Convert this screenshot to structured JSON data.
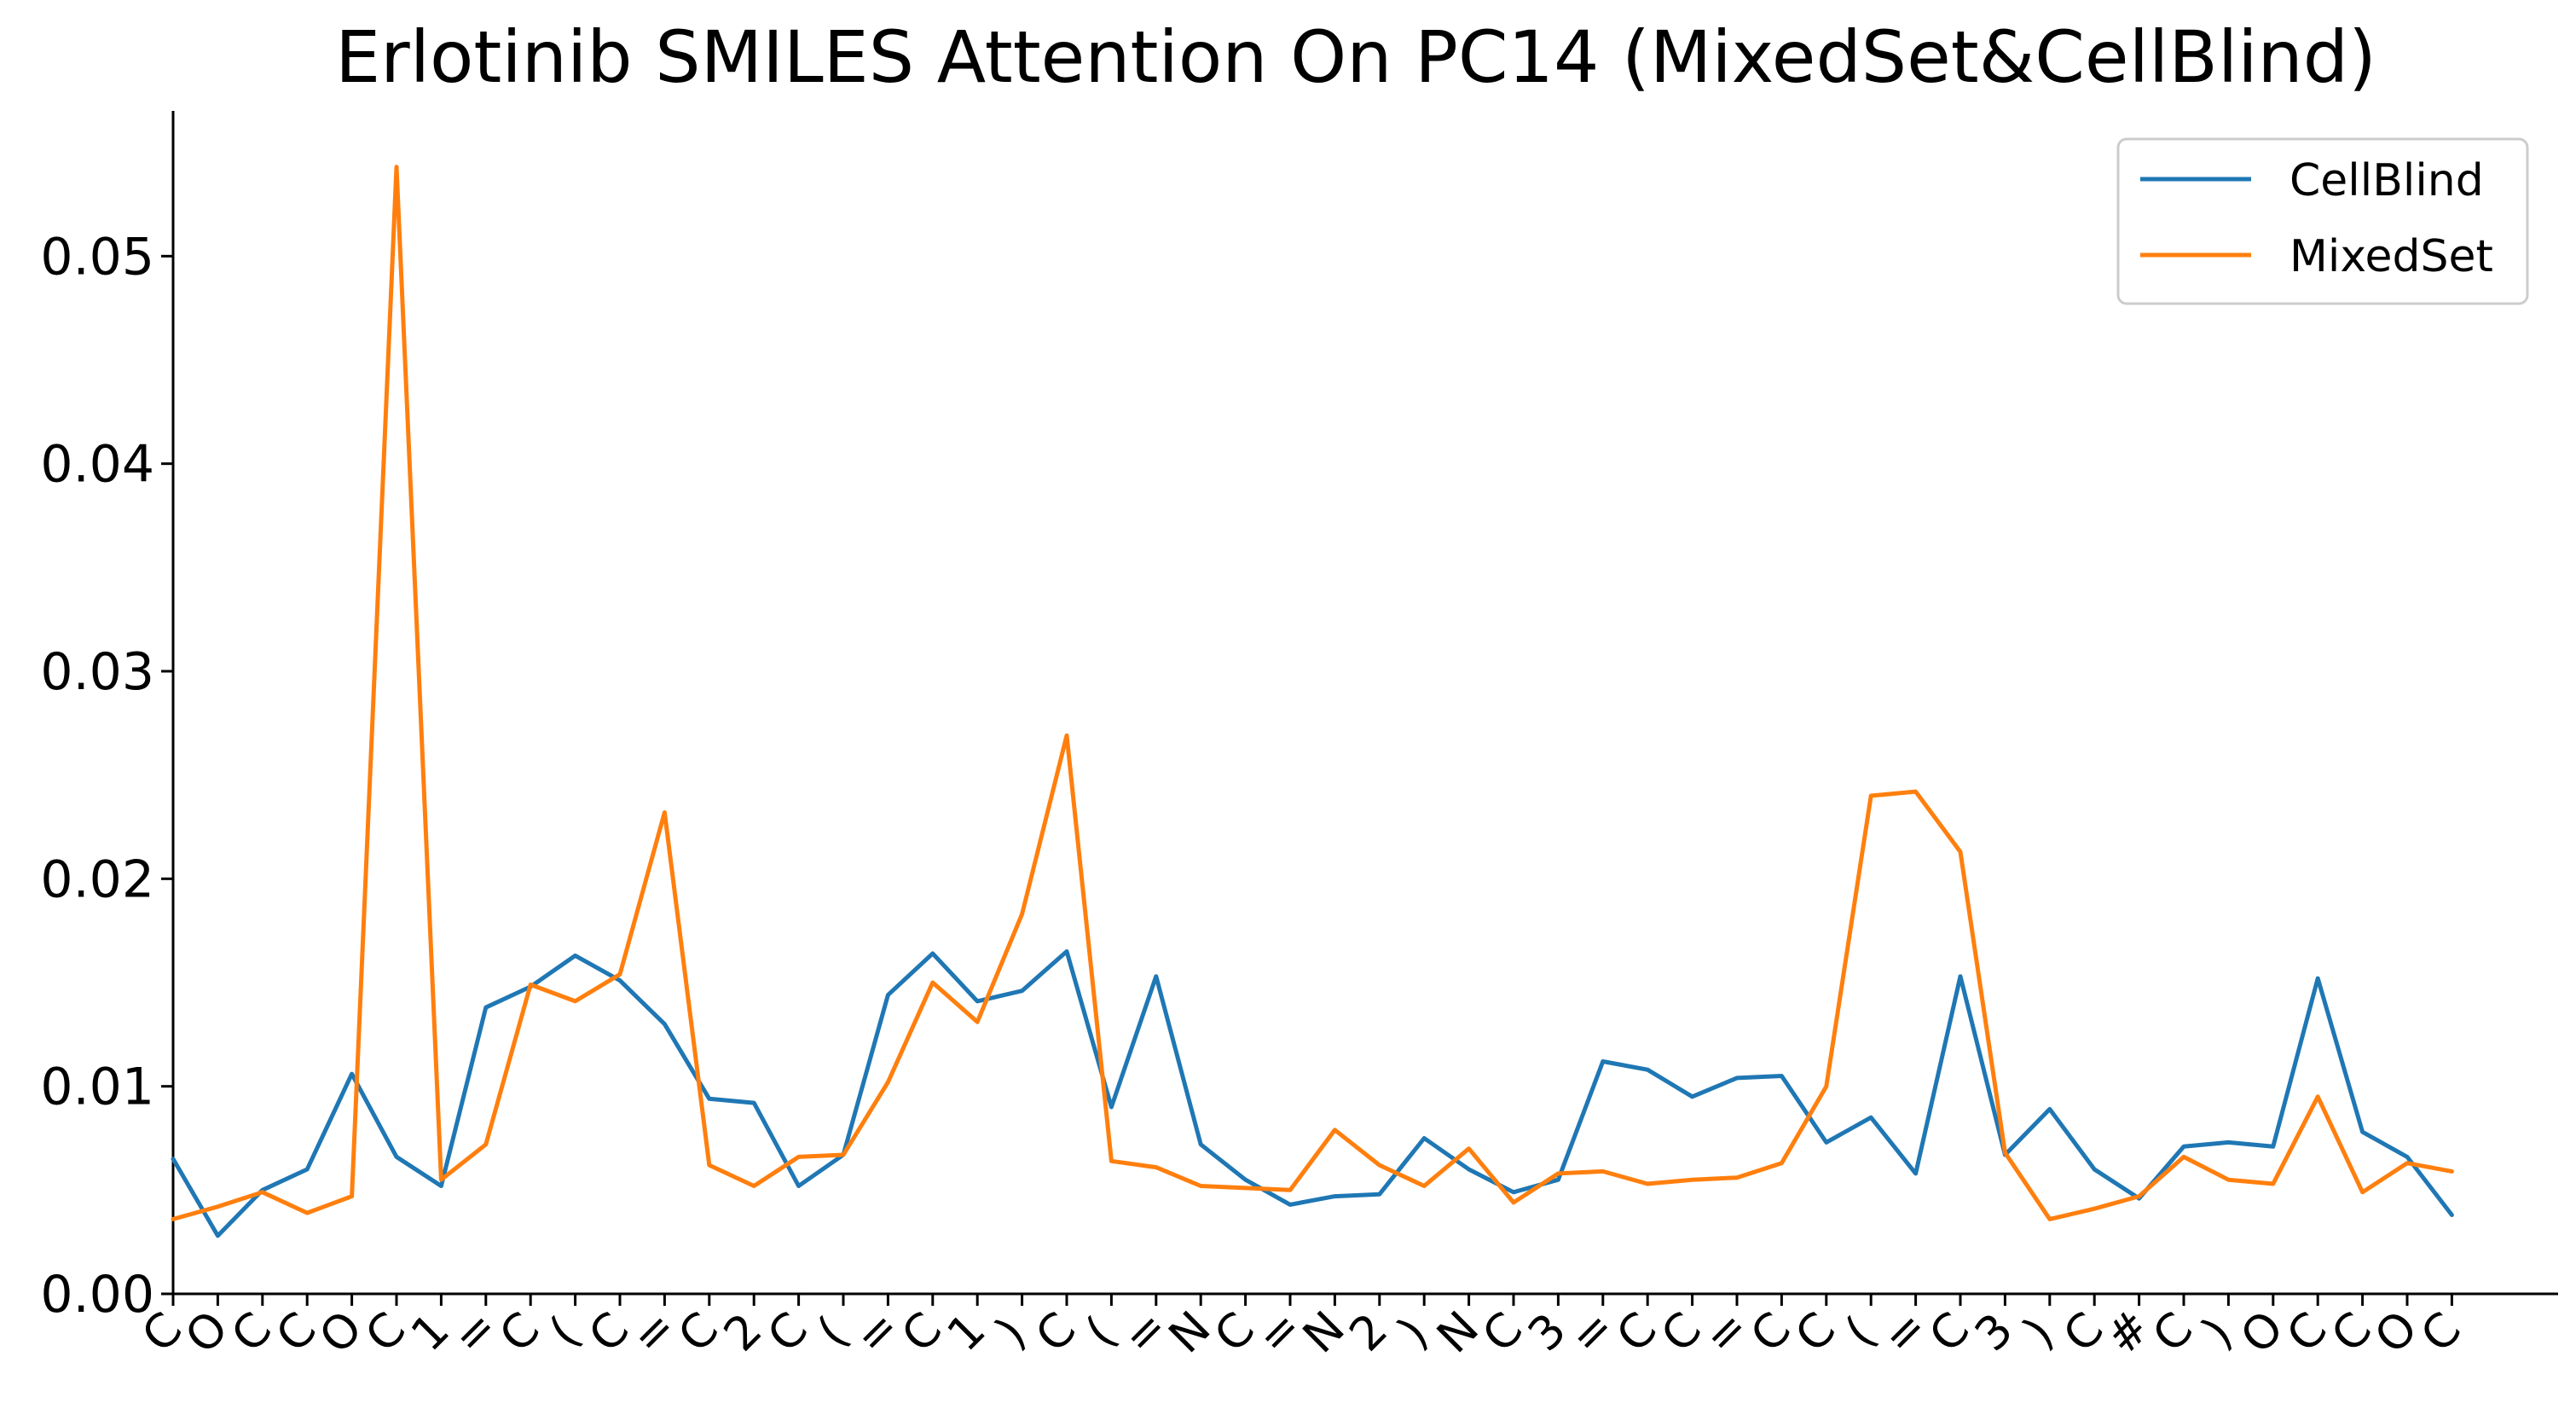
{
  "chart_data": {
    "type": "line",
    "title": "Erlotinib SMILES Attention On PC14 (MixedSet&CellBlind)",
    "xlabel": "",
    "ylabel": "",
    "ylim": [
      0,
      0.057
    ],
    "yticks": [
      {
        "value": 0.0,
        "label": "0.00"
      },
      {
        "value": 0.01,
        "label": "0.01"
      },
      {
        "value": 0.02,
        "label": "0.02"
      },
      {
        "value": 0.03,
        "label": "0.03"
      },
      {
        "value": 0.04,
        "label": "0.04"
      },
      {
        "value": 0.05,
        "label": "0.05"
      }
    ],
    "categories": [
      "C",
      "O",
      "C",
      "C",
      "O",
      "C",
      "1",
      "=",
      "C",
      "(",
      "C",
      "=",
      "C",
      "2",
      "C",
      "(",
      "=",
      "C",
      "1",
      ")",
      "C",
      "(",
      "=",
      "N",
      "C",
      "=",
      "N",
      "2",
      ")",
      "N",
      "C",
      "3",
      "=",
      "C",
      "C",
      "=",
      "C",
      "C",
      "(",
      "=",
      "C",
      "3",
      ")",
      "C",
      "#",
      "C",
      ")",
      "O",
      "C",
      "C",
      "O",
      "C"
    ],
    "legend": {
      "position": "top-right"
    },
    "series": [
      {
        "name": "CellBlind",
        "color": "#1f77b4",
        "values": [
          0.0065,
          0.0028,
          0.005,
          0.006,
          0.0106,
          0.0066,
          0.0052,
          0.0138,
          0.0148,
          0.0163,
          0.0151,
          0.013,
          0.0094,
          0.0092,
          0.0052,
          0.0067,
          0.0144,
          0.0164,
          0.0141,
          0.0146,
          0.0165,
          0.009,
          0.0153,
          0.0072,
          0.0055,
          0.0043,
          0.0047,
          0.0048,
          0.0075,
          0.006,
          0.0049,
          0.0055,
          0.0112,
          0.0108,
          0.0095,
          0.0104,
          0.0105,
          0.0073,
          0.0085,
          0.0058,
          0.0153,
          0.0067,
          0.0089,
          0.006,
          0.0046,
          0.0071,
          0.0073,
          0.0071,
          0.0152,
          0.0078,
          0.0066,
          0.0038
        ]
      },
      {
        "name": "MixedSet",
        "color": "#ff7f0e",
        "values": [
          0.0036,
          0.0042,
          0.0049,
          0.0039,
          0.0047,
          0.0543,
          0.0055,
          0.0072,
          0.0149,
          0.0141,
          0.0154,
          0.0232,
          0.0062,
          0.0052,
          0.0066,
          0.0067,
          0.0102,
          0.015,
          0.0131,
          0.0183,
          0.0269,
          0.0064,
          0.0061,
          0.0052,
          0.0051,
          0.005,
          0.0079,
          0.0062,
          0.0052,
          0.007,
          0.0044,
          0.0058,
          0.0059,
          0.0053,
          0.0055,
          0.0056,
          0.0063,
          0.01,
          0.024,
          0.0242,
          0.0213,
          0.0068,
          0.0036,
          0.0041,
          0.0047,
          0.0066,
          0.0055,
          0.0053,
          0.0095,
          0.0049,
          0.0063,
          0.0059
        ]
      }
    ]
  }
}
